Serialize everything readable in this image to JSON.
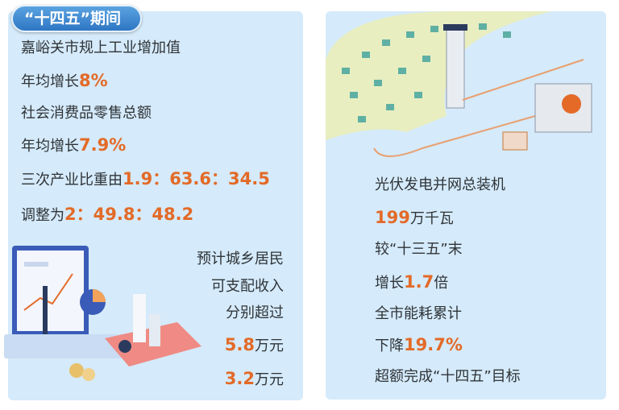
{
  "badge": "“十四五”期间",
  "left": {
    "l1": "嘉峪关市规上工业增加值",
    "l2a": "年均增长",
    "l2b": "8%",
    "l3": "社会消费品零售总额",
    "l4a": "年均增长",
    "l4b": "7.9%",
    "l5a": "三次产业比重由",
    "l5b": "1.9：63.6：34.5",
    "l6a": "调整为",
    "l6b": "2：49.8：48.2",
    "i1": "预计城乡居民",
    "i2": "可支配收入",
    "i3": "分别超过",
    "i4a": "5.8",
    "i4b": "万元",
    "i5a": "3.2",
    "i5b": "万元"
  },
  "right": {
    "r1": "光伏发电并网总装机",
    "r2a": "199",
    "r2b": "万千瓦",
    "r3": "较“十三五”末",
    "r4a": "增长",
    "r4b": "1.7",
    "r4c": "倍",
    "r5": "全市能耗累计",
    "r6a": "下降",
    "r6b": "19.7%",
    "r7": "超额完成“十四五”目标"
  },
  "colors": {
    "panel": "#d5eafa",
    "accent": "#e36a27",
    "badge": "#2f76c4"
  }
}
